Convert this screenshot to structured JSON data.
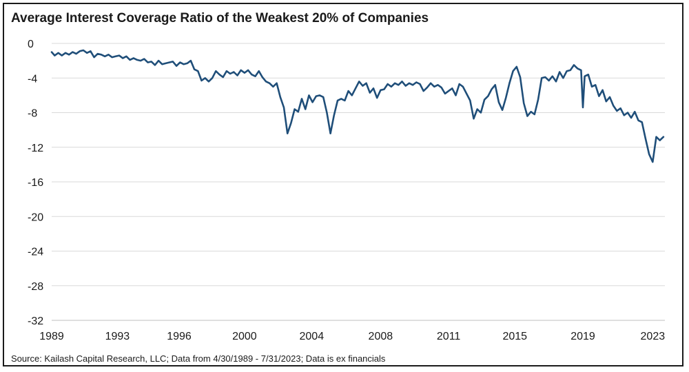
{
  "chart_data": {
    "type": "line",
    "title": "Average Interest Coverage Ratio of the Weakest 20% of Companies",
    "source": "Source: Kailash Capital Research, LLC; Data from 4/30/1989 - 7/31/2023; Data is ex financials",
    "xlabel": "",
    "ylabel": "",
    "ylim": [
      -32,
      0
    ],
    "yticks": [
      0,
      -4,
      -8,
      -12,
      -16,
      -20,
      -24,
      -28,
      -32
    ],
    "xlim": [
      1989.33,
      2023.58
    ],
    "xticks": [
      {
        "value": 1989.33,
        "label": "1989"
      },
      {
        "value": 1993.0,
        "label": "1993"
      },
      {
        "value": 1996.45,
        "label": "1996"
      },
      {
        "value": 2000.1,
        "label": "2000"
      },
      {
        "value": 2003.85,
        "label": "2004"
      },
      {
        "value": 2007.7,
        "label": "2008"
      },
      {
        "value": 2011.5,
        "label": "2011"
      },
      {
        "value": 2015.2,
        "label": "2015"
      },
      {
        "value": 2019.0,
        "label": "2019"
      },
      {
        "value": 2022.9,
        "label": "2023"
      }
    ],
    "grid": true,
    "colors": {
      "line": "#1f4e79",
      "grid": "#d9d9d9"
    },
    "series": [
      {
        "points": [
          [
            1989.33,
            -1.0
          ],
          [
            1989.5,
            -1.4
          ],
          [
            1989.7,
            -1.1
          ],
          [
            1989.9,
            -1.4
          ],
          [
            1990.1,
            -1.1
          ],
          [
            1990.3,
            -1.3
          ],
          [
            1990.5,
            -1.0
          ],
          [
            1990.7,
            -1.2
          ],
          [
            1990.9,
            -0.9
          ],
          [
            1991.1,
            -0.8
          ],
          [
            1991.3,
            -1.1
          ],
          [
            1991.5,
            -0.9
          ],
          [
            1991.7,
            -1.6
          ],
          [
            1991.9,
            -1.2
          ],
          [
            1992.1,
            -1.3
          ],
          [
            1992.3,
            -1.5
          ],
          [
            1992.5,
            -1.3
          ],
          [
            1992.7,
            -1.6
          ],
          [
            1992.9,
            -1.5
          ],
          [
            1993.1,
            -1.4
          ],
          [
            1993.3,
            -1.7
          ],
          [
            1993.5,
            -1.5
          ],
          [
            1993.7,
            -1.9
          ],
          [
            1993.9,
            -1.7
          ],
          [
            1994.1,
            -1.9
          ],
          [
            1994.3,
            -2.0
          ],
          [
            1994.5,
            -1.8
          ],
          [
            1994.7,
            -2.2
          ],
          [
            1994.9,
            -2.1
          ],
          [
            1995.1,
            -2.5
          ],
          [
            1995.3,
            -2.0
          ],
          [
            1995.5,
            -2.4
          ],
          [
            1995.7,
            -2.3
          ],
          [
            1995.9,
            -2.2
          ],
          [
            1996.1,
            -2.1
          ],
          [
            1996.3,
            -2.6
          ],
          [
            1996.5,
            -2.2
          ],
          [
            1996.7,
            -2.4
          ],
          [
            1996.9,
            -2.3
          ],
          [
            1997.1,
            -2.0
          ],
          [
            1997.3,
            -3.0
          ],
          [
            1997.5,
            -3.2
          ],
          [
            1997.7,
            -4.3
          ],
          [
            1997.9,
            -4.0
          ],
          [
            1998.1,
            -4.4
          ],
          [
            1998.3,
            -4.0
          ],
          [
            1998.5,
            -3.2
          ],
          [
            1998.7,
            -3.6
          ],
          [
            1998.9,
            -3.9
          ],
          [
            1999.1,
            -3.2
          ],
          [
            1999.3,
            -3.5
          ],
          [
            1999.5,
            -3.3
          ],
          [
            1999.7,
            -3.7
          ],
          [
            1999.9,
            -3.1
          ],
          [
            2000.1,
            -3.4
          ],
          [
            2000.3,
            -3.1
          ],
          [
            2000.5,
            -3.6
          ],
          [
            2000.7,
            -3.8
          ],
          [
            2000.9,
            -3.2
          ],
          [
            2001.1,
            -3.9
          ],
          [
            2001.3,
            -4.4
          ],
          [
            2001.5,
            -4.6
          ],
          [
            2001.7,
            -5.0
          ],
          [
            2001.9,
            -4.6
          ],
          [
            2002.1,
            -6.2
          ],
          [
            2002.3,
            -7.4
          ],
          [
            2002.5,
            -10.4
          ],
          [
            2002.7,
            -9.2
          ],
          [
            2002.9,
            -7.6
          ],
          [
            2003.1,
            -7.9
          ],
          [
            2003.3,
            -6.4
          ],
          [
            2003.5,
            -7.6
          ],
          [
            2003.7,
            -6.0
          ],
          [
            2003.9,
            -6.8
          ],
          [
            2004.1,
            -6.1
          ],
          [
            2004.3,
            -6.0
          ],
          [
            2004.5,
            -6.2
          ],
          [
            2004.7,
            -8.0
          ],
          [
            2004.9,
            -10.4
          ],
          [
            2005.1,
            -8.3
          ],
          [
            2005.3,
            -6.6
          ],
          [
            2005.5,
            -6.4
          ],
          [
            2005.7,
            -6.6
          ],
          [
            2005.9,
            -5.5
          ],
          [
            2006.1,
            -6.0
          ],
          [
            2006.3,
            -5.2
          ],
          [
            2006.5,
            -4.4
          ],
          [
            2006.7,
            -4.9
          ],
          [
            2006.9,
            -4.6
          ],
          [
            2007.1,
            -5.7
          ],
          [
            2007.3,
            -5.2
          ],
          [
            2007.5,
            -6.3
          ],
          [
            2007.7,
            -5.4
          ],
          [
            2007.9,
            -5.3
          ],
          [
            2008.1,
            -4.7
          ],
          [
            2008.3,
            -5.0
          ],
          [
            2008.5,
            -4.6
          ],
          [
            2008.7,
            -4.8
          ],
          [
            2008.9,
            -4.4
          ],
          [
            2009.1,
            -4.9
          ],
          [
            2009.3,
            -4.6
          ],
          [
            2009.5,
            -4.8
          ],
          [
            2009.7,
            -4.5
          ],
          [
            2009.9,
            -4.7
          ],
          [
            2010.1,
            -5.5
          ],
          [
            2010.3,
            -5.1
          ],
          [
            2010.5,
            -4.6
          ],
          [
            2010.7,
            -5.0
          ],
          [
            2010.9,
            -4.8
          ],
          [
            2011.1,
            -5.1
          ],
          [
            2011.3,
            -5.8
          ],
          [
            2011.5,
            -5.5
          ],
          [
            2011.7,
            -5.2
          ],
          [
            2011.9,
            -6.0
          ],
          [
            2012.1,
            -4.7
          ],
          [
            2012.3,
            -5.0
          ],
          [
            2012.5,
            -5.8
          ],
          [
            2012.7,
            -6.6
          ],
          [
            2012.9,
            -8.7
          ],
          [
            2013.1,
            -7.6
          ],
          [
            2013.3,
            -8.0
          ],
          [
            2013.5,
            -6.5
          ],
          [
            2013.7,
            -6.1
          ],
          [
            2013.9,
            -5.3
          ],
          [
            2014.1,
            -4.8
          ],
          [
            2014.3,
            -6.8
          ],
          [
            2014.5,
            -7.7
          ],
          [
            2014.7,
            -6.3
          ],
          [
            2014.9,
            -4.6
          ],
          [
            2015.1,
            -3.2
          ],
          [
            2015.3,
            -2.7
          ],
          [
            2015.5,
            -3.9
          ],
          [
            2015.7,
            -6.9
          ],
          [
            2015.9,
            -8.4
          ],
          [
            2016.1,
            -7.9
          ],
          [
            2016.3,
            -8.2
          ],
          [
            2016.5,
            -6.5
          ],
          [
            2016.7,
            -4.0
          ],
          [
            2016.9,
            -3.9
          ],
          [
            2017.1,
            -4.3
          ],
          [
            2017.3,
            -3.8
          ],
          [
            2017.5,
            -4.4
          ],
          [
            2017.7,
            -3.3
          ],
          [
            2017.9,
            -4.0
          ],
          [
            2018.1,
            -3.2
          ],
          [
            2018.3,
            -3.1
          ],
          [
            2018.5,
            -2.5
          ],
          [
            2018.7,
            -2.9
          ],
          [
            2018.9,
            -3.1
          ],
          [
            2019.0,
            -7.4
          ],
          [
            2019.1,
            -3.8
          ],
          [
            2019.3,
            -3.6
          ],
          [
            2019.5,
            -5.0
          ],
          [
            2019.7,
            -4.8
          ],
          [
            2019.9,
            -6.1
          ],
          [
            2020.1,
            -5.4
          ],
          [
            2020.3,
            -6.7
          ],
          [
            2020.5,
            -6.2
          ],
          [
            2020.7,
            -7.2
          ],
          [
            2020.9,
            -7.8
          ],
          [
            2021.1,
            -7.5
          ],
          [
            2021.3,
            -8.3
          ],
          [
            2021.5,
            -8.0
          ],
          [
            2021.7,
            -8.6
          ],
          [
            2021.9,
            -7.9
          ],
          [
            2022.1,
            -8.9
          ],
          [
            2022.3,
            -9.1
          ],
          [
            2022.5,
            -11.0
          ],
          [
            2022.7,
            -12.8
          ],
          [
            2022.9,
            -13.7
          ],
          [
            2023.1,
            -10.8
          ],
          [
            2023.3,
            -11.2
          ],
          [
            2023.5,
            -10.8
          ]
        ]
      }
    ]
  }
}
